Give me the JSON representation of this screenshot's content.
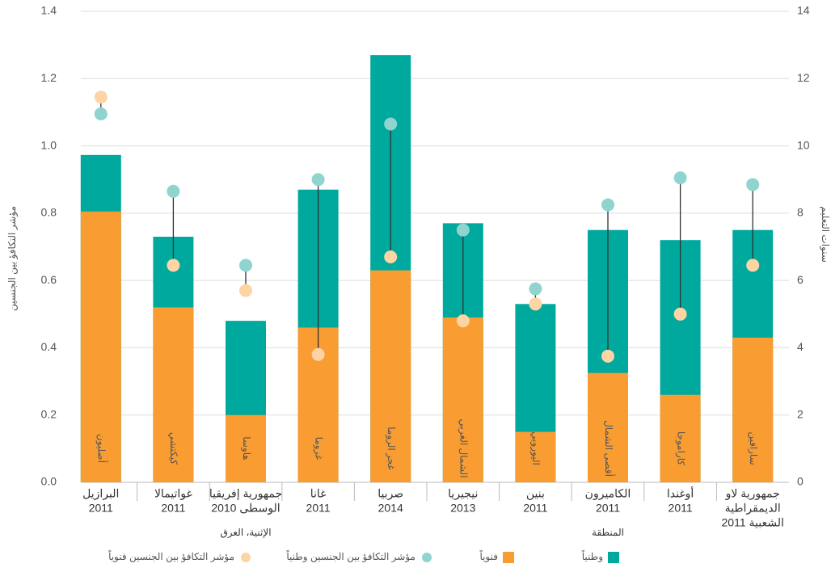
{
  "chart_data": {
    "type": "bar-dot",
    "y_label": "مؤشر التكافؤ بين الجنسين",
    "y2_label": "سنوات التعليم",
    "categories": [
      [
        "البرازيل",
        "2011"
      ],
      [
        "غواتيمالا",
        "2011"
      ],
      [
        "جمهورية إفريقيا",
        "الوسطى 2010"
      ],
      [
        "غانا",
        "2011"
      ],
      [
        "صربيا",
        "2014"
      ],
      [
        "نيجيريا",
        "2013"
      ],
      [
        "بنين",
        "2011"
      ],
      [
        "الكاميرون",
        "2011"
      ],
      [
        "أوغندا",
        "2011"
      ],
      [
        "جمهورية لاو",
        "الديمقراطية",
        "الشعبية 2011"
      ]
    ],
    "groups": [
      "أصليون",
      "كيكتشي",
      "هاوسا",
      "غروما",
      "غجر الروما",
      "الشمال الغربي",
      "اليوروبي",
      "أقصى الشمال",
      "كاراموجا",
      "سارافين"
    ],
    "group_types": [
      null,
      null,
      "الإثنية، العرق",
      null,
      null,
      null,
      null,
      "المنطقة",
      null,
      null
    ],
    "series": [
      {
        "name": "وطنياً",
        "kind": "bar",
        "axis": "y2",
        "color": "#00a99d",
        "values": [
          9.73,
          7.3,
          4.8,
          8.7,
          12.7,
          7.7,
          5.3,
          7.5,
          7.2,
          7.5
        ]
      },
      {
        "name": "فنوياً",
        "kind": "bar",
        "axis": "y2",
        "color": "#f99d33",
        "values": [
          8.05,
          5.2,
          2.0,
          4.6,
          6.3,
          4.9,
          1.5,
          3.25,
          2.6,
          4.3
        ]
      },
      {
        "name": "مؤشر التكافؤ بين الجنسين وطنياً",
        "kind": "dot",
        "color": "#8fd4cf",
        "values": [
          1.095,
          0.865,
          0.645,
          0.9,
          1.065,
          0.75,
          0.575,
          0.825,
          0.905,
          0.885
        ]
      },
      {
        "name": "مؤشر التكافؤ بين الجنسين فنوياً",
        "kind": "dot",
        "color": "#fdd4a3",
        "values": [
          1.145,
          0.645,
          0.57,
          0.38,
          0.67,
          0.48,
          0.53,
          0.375,
          0.5,
          0.645
        ]
      }
    ],
    "ylim": [
      0,
      1.4
    ],
    "yticks": [
      {
        "value": 0,
        "label": "0.0"
      },
      0.2,
      0.4,
      0.6,
      0.8,
      {
        "value": 1,
        "label": "1.0"
      },
      1.2,
      1.4
    ],
    "y2lim": [
      0,
      14
    ],
    "y2ticks": [
      0,
      2,
      4,
      6,
      8,
      10,
      12,
      14
    ],
    "grid": true
  }
}
